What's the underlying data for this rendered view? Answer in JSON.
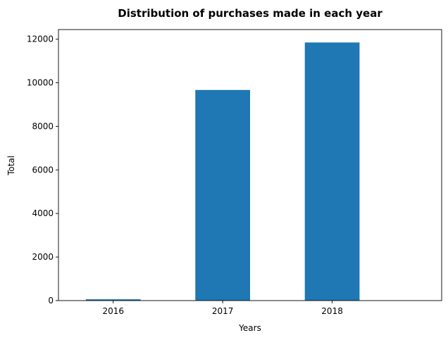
{
  "chart_data": {
    "type": "bar",
    "title": "Distribution of purchases made in each year",
    "xlabel": "Years",
    "ylabel": "Total",
    "categories": [
      "2016",
      "2017",
      "2018"
    ],
    "values": [
      60,
      9670,
      11850
    ],
    "ylim": [
      0,
      12443
    ],
    "yticks": [
      0,
      2000,
      4000,
      6000,
      8000,
      10000,
      12000
    ],
    "bar_color": "#1f77b4",
    "grid": false,
    "legend": "none"
  }
}
